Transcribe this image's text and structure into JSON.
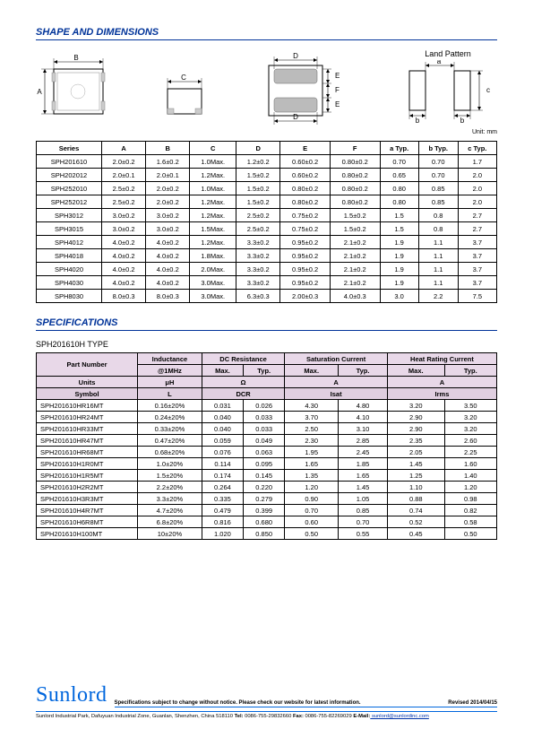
{
  "section1_title": "SHAPE AND DIMENSIONS",
  "land_pattern_label": "Land Pattern",
  "unit_label": "Unit: mm",
  "dim_headers": [
    "Series",
    "A",
    "B",
    "C",
    "D",
    "E",
    "F",
    "a Typ.",
    "b Typ.",
    "c Typ."
  ],
  "dim_rows": [
    [
      "SPH201610",
      "2.0±0.2",
      "1.6±0.2",
      "1.0Max.",
      "1.2±0.2",
      "0.60±0.2",
      "0.80±0.2",
      "0.70",
      "0.70",
      "1.7"
    ],
    [
      "SPH202012",
      "2.0±0.1",
      "2.0±0.1",
      "1.2Max.",
      "1.5±0.2",
      "0.60±0.2",
      "0.80±0.2",
      "0.65",
      "0.70",
      "2.0"
    ],
    [
      "SPH252010",
      "2.5±0.2",
      "2.0±0.2",
      "1.0Max.",
      "1.5±0.2",
      "0.80±0.2",
      "0.80±0.2",
      "0.80",
      "0.85",
      "2.0"
    ],
    [
      "SPH252012",
      "2.5±0.2",
      "2.0±0.2",
      "1.2Max.",
      "1.5±0.2",
      "0.80±0.2",
      "0.80±0.2",
      "0.80",
      "0.85",
      "2.0"
    ],
    [
      "SPH3012",
      "3.0±0.2",
      "3.0±0.2",
      "1.2Max.",
      "2.5±0.2",
      "0.75±0.2",
      "1.5±0.2",
      "1.5",
      "0.8",
      "2.7"
    ],
    [
      "SPH3015",
      "3.0±0.2",
      "3.0±0.2",
      "1.5Max.",
      "2.5±0.2",
      "0.75±0.2",
      "1.5±0.2",
      "1.5",
      "0.8",
      "2.7"
    ],
    [
      "SPH4012",
      "4.0±0.2",
      "4.0±0.2",
      "1.2Max.",
      "3.3±0.2",
      "0.95±0.2",
      "2.1±0.2",
      "1.9",
      "1.1",
      "3.7"
    ],
    [
      "SPH4018",
      "4.0±0.2",
      "4.0±0.2",
      "1.8Max.",
      "3.3±0.2",
      "0.95±0.2",
      "2.1±0.2",
      "1.9",
      "1.1",
      "3.7"
    ],
    [
      "SPH4020",
      "4.0±0.2",
      "4.0±0.2",
      "2.0Max.",
      "3.3±0.2",
      "0.95±0.2",
      "2.1±0.2",
      "1.9",
      "1.1",
      "3.7"
    ],
    [
      "SPH4030",
      "4.0±0.2",
      "4.0±0.2",
      "3.0Max.",
      "3.3±0.2",
      "0.95±0.2",
      "2.1±0.2",
      "1.9",
      "1.1",
      "3.7"
    ],
    [
      "SPH8030",
      "8.0±0.3",
      "8.0±0.3",
      "3.0Max.",
      "6.3±0.3",
      "2.00±0.3",
      "4.0±0.3",
      "3.0",
      "2.2",
      "7.5"
    ]
  ],
  "section2_title": "SPECIFICATIONS",
  "subtype_label": "SPH201610H TYPE",
  "spec_h1": [
    "Part Number",
    "Inductance",
    "DC Resistance",
    "Saturation Current",
    "Heat Rating Current"
  ],
  "spec_h2": [
    "@1MHz",
    "Max.",
    "Typ.",
    "Max.",
    "Typ.",
    "Max.",
    "Typ."
  ],
  "spec_units_row": [
    "Units",
    "μH",
    "Ω",
    "A",
    "A"
  ],
  "spec_symbol_row": [
    "Symbol",
    "L",
    "DCR",
    "Isat",
    "Irms"
  ],
  "spec_rows": [
    [
      "SPH201610HR16MT",
      "0.16±20%",
      "0.031",
      "0.026",
      "4.30",
      "4.80",
      "3.20",
      "3.50"
    ],
    [
      "SPH201610HR24MT",
      "0.24±20%",
      "0.040",
      "0.033",
      "3.70",
      "4.10",
      "2.90",
      "3.20"
    ],
    [
      "SPH201610HR33MT",
      "0.33±20%",
      "0.040",
      "0.033",
      "2.50",
      "3.10",
      "2.90",
      "3.20"
    ],
    [
      "SPH201610HR47MT",
      "0.47±20%",
      "0.059",
      "0.049",
      "2.30",
      "2.85",
      "2.35",
      "2.60"
    ],
    [
      "SPH201610HR68MT",
      "0.68±20%",
      "0.076",
      "0.063",
      "1.95",
      "2.45",
      "2.05",
      "2.25"
    ],
    [
      "SPH201610H1R0MT",
      "1.0±20%",
      "0.114",
      "0.095",
      "1.65",
      "1.85",
      "1.45",
      "1.60"
    ],
    [
      "SPH201610H1R5MT",
      "1.5±20%",
      "0.174",
      "0.145",
      "1.35",
      "1.65",
      "1.25",
      "1.40"
    ],
    [
      "SPH201610H2R2MT",
      "2.2±20%",
      "0.264",
      "0.220",
      "1.20",
      "1.45",
      "1.10",
      "1.20"
    ],
    [
      "SPH201610H3R3MT",
      "3.3±20%",
      "0.335",
      "0.279",
      "0.90",
      "1.05",
      "0.88",
      "0.98"
    ],
    [
      "SPH201610H4R7MT",
      "4.7±20%",
      "0.479",
      "0.399",
      "0.70",
      "0.85",
      "0.74",
      "0.82"
    ],
    [
      "SPH201610H6R8MT",
      "6.8±20%",
      "0.816",
      "0.680",
      "0.60",
      "0.70",
      "0.52",
      "0.58"
    ],
    [
      "SPH201610H100MT",
      "10±20%",
      "1.020",
      "0.850",
      "0.50",
      "0.55",
      "0.45",
      "0.50"
    ]
  ],
  "brand": "Sunlord",
  "spec_note": "Specifications subject to change without notice. Please check our website for latest information.",
  "revised": "Revised 2014/04/15",
  "address_pre": "Sunlord Industrial Park, Dafuyuan Industrial Zone, Guanlan, Shenzhen, China 518110 ",
  "tel_label": "Tel:",
  "tel": " 0086-755-29832660 ",
  "fax_label": "Fax:",
  "fax": " 0086-755-82269029 ",
  "email_label": "E-Mail:",
  "email": " sunlord@sunlordinc.com",
  "dim_labels": {
    "A": "A",
    "B": "B",
    "C": "C",
    "D": "D",
    "E": "E",
    "F": "F",
    "a": "a",
    "b": "b",
    "c": "c"
  }
}
